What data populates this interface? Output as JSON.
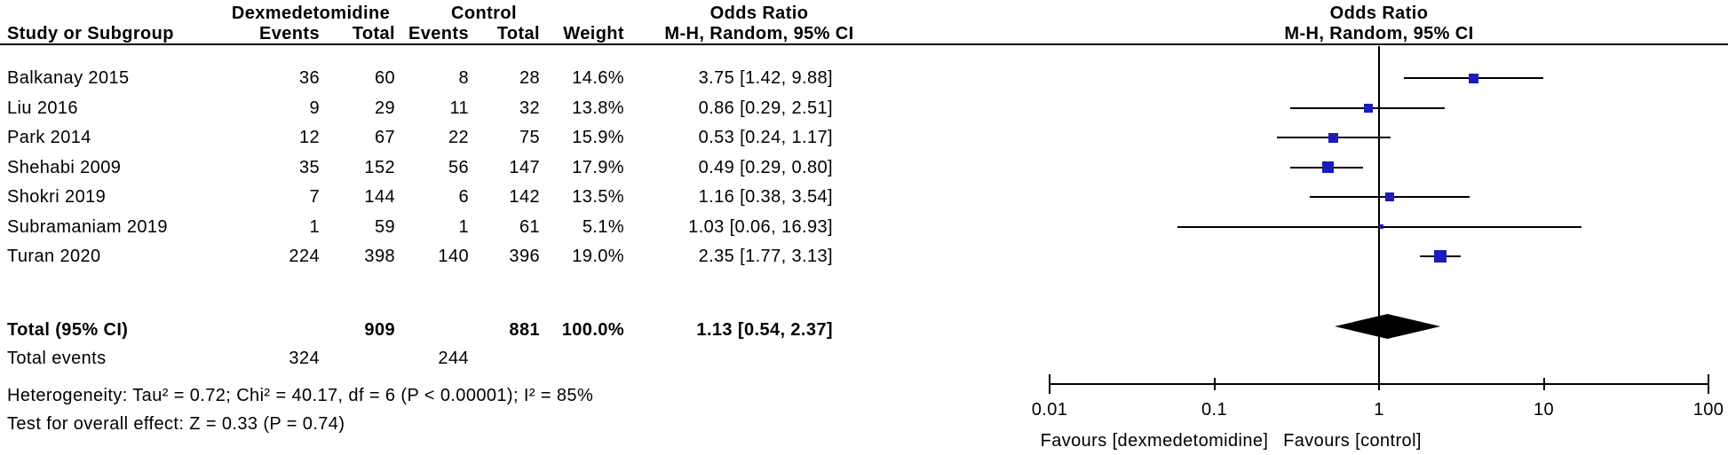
{
  "header": {
    "group1": "Dexmedetomidine",
    "group2": "Control",
    "odds_ratio": "Odds Ratio",
    "mh_label": "M-H, Random, 95% CI",
    "study": "Study or Subgroup",
    "events1": "Events",
    "total1": "Total",
    "events2": "Events",
    "total2": "Total",
    "weight": "Weight"
  },
  "plot_header": {
    "odds_ratio": "Odds Ratio",
    "mh_label": "M-H, Random, 95% CI"
  },
  "totals": {
    "label": "Total (95% CI)",
    "total1": "909",
    "total2": "881",
    "weight": "100.0%",
    "or_text": "1.13 [0.54, 2.37]",
    "events_label": "Total events",
    "events1": "324",
    "events2": "244"
  },
  "footer": {
    "heterogeneity": "Heterogeneity: Tau² = 0.72; Chi² = 40.17, df = 6 (P < 0.00001); I² = 85%",
    "overall_effect": "Test for overall effect: Z = 0.33 (P = 0.74)"
  },
  "colors": {
    "marker_blue": "#1c1cb8",
    "diamond_black": "#000000",
    "line_black": "#000000"
  },
  "chart_data": {
    "type": "scatter",
    "subtype": "forest-plot",
    "effect_measure": "Odds Ratio, M-H, Random, 95% CI",
    "x_scale": "log10",
    "xlim": [
      0.01,
      100
    ],
    "x_ticks": [
      0.01,
      0.1,
      1,
      10,
      100
    ],
    "x_tick_labels": [
      "0.01",
      "0.1",
      "1",
      "10",
      "100"
    ],
    "favours_left": "Favours [dexmedetomidine]",
    "favours_right": "Favours [control]",
    "studies": [
      {
        "name": "Balkanay 2015",
        "events_dex": 36,
        "total_dex": 60,
        "events_ctl": 8,
        "total_ctl": 28,
        "weight": "14.6%",
        "or": 3.75,
        "ci_low": 1.42,
        "ci_high": 9.88,
        "or_text": "3.75 [1.42, 9.88]"
      },
      {
        "name": "Liu 2016",
        "events_dex": 9,
        "total_dex": 29,
        "events_ctl": 11,
        "total_ctl": 32,
        "weight": "13.8%",
        "or": 0.86,
        "ci_low": 0.29,
        "ci_high": 2.51,
        "or_text": "0.86 [0.29, 2.51]"
      },
      {
        "name": "Park 2014",
        "events_dex": 12,
        "total_dex": 67,
        "events_ctl": 22,
        "total_ctl": 75,
        "weight": "15.9%",
        "or": 0.53,
        "ci_low": 0.24,
        "ci_high": 1.17,
        "or_text": "0.53 [0.24, 1.17]"
      },
      {
        "name": "Shehabi 2009",
        "events_dex": 35,
        "total_dex": 152,
        "events_ctl": 56,
        "total_ctl": 147,
        "weight": "17.9%",
        "or": 0.49,
        "ci_low": 0.29,
        "ci_high": 0.8,
        "or_text": "0.49 [0.29, 0.80]"
      },
      {
        "name": "Shokri 2019",
        "events_dex": 7,
        "total_dex": 144,
        "events_ctl": 6,
        "total_ctl": 142,
        "weight": "13.5%",
        "or": 1.16,
        "ci_low": 0.38,
        "ci_high": 3.54,
        "or_text": "1.16 [0.38, 3.54]"
      },
      {
        "name": "Subramaniam 2019",
        "events_dex": 1,
        "total_dex": 59,
        "events_ctl": 1,
        "total_ctl": 61,
        "weight": "5.1%",
        "or": 1.03,
        "ci_low": 0.06,
        "ci_high": 16.93,
        "or_text": "1.03 [0.06, 16.93]"
      },
      {
        "name": "Turan 2020",
        "events_dex": 224,
        "total_dex": 398,
        "events_ctl": 140,
        "total_ctl": 396,
        "weight": "19.0%",
        "or": 2.35,
        "ci_low": 1.77,
        "ci_high": 3.13,
        "or_text": "2.35 [1.77, 3.13]"
      }
    ],
    "total": {
      "total_dex": 909,
      "total_ctl": 881,
      "weight": "100.0%",
      "or": 1.13,
      "ci_low": 0.54,
      "ci_high": 2.37,
      "events_dex": 324,
      "events_ctl": 244
    },
    "heterogeneity": "Tau² = 0.72; Chi² = 40.17, df = 6 (P < 0.00001); I² = 85%",
    "overall_effect": "Z = 0.33 (P = 0.74)"
  }
}
